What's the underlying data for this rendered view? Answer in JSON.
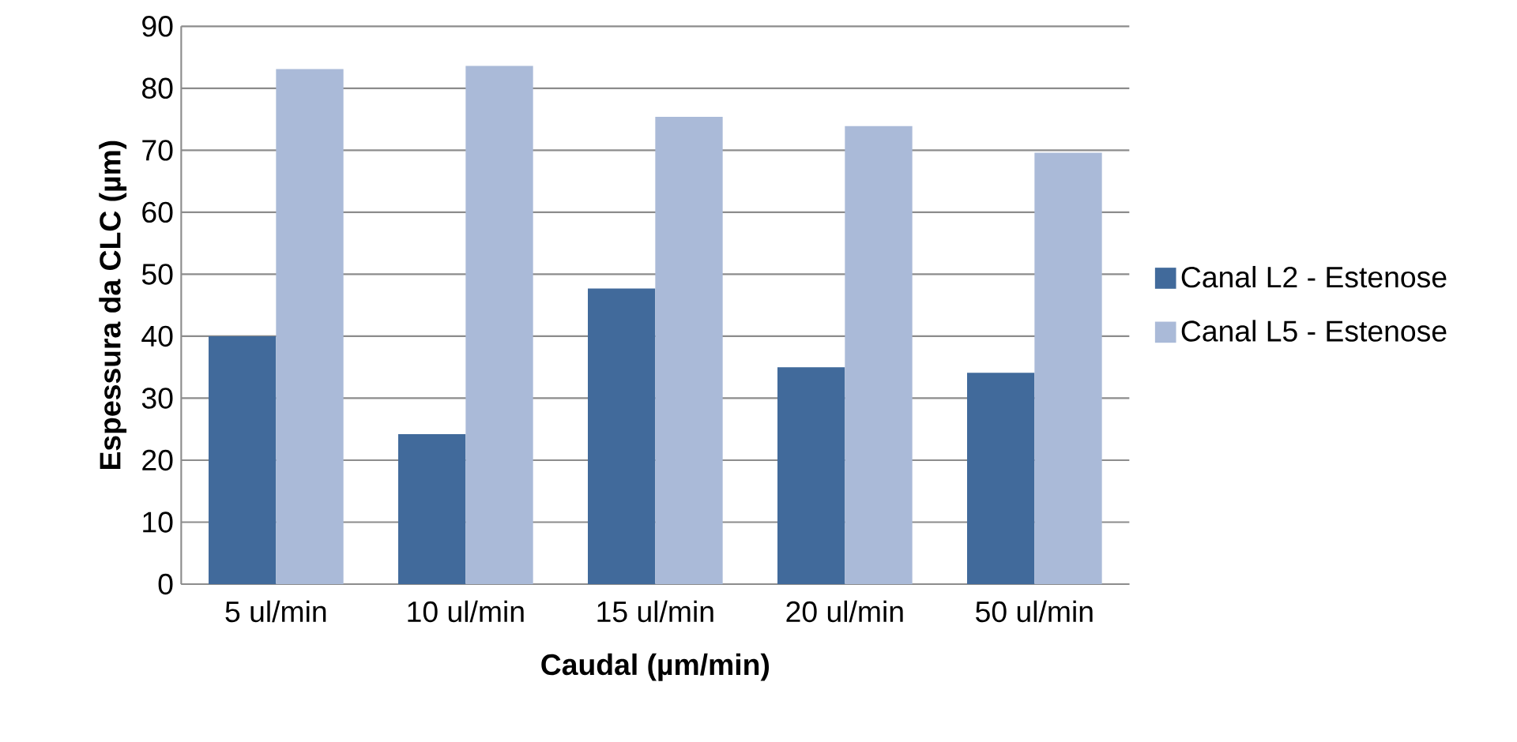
{
  "chart_data": {
    "type": "bar",
    "xlabel": "Caudal (µm/min)",
    "ylabel": "Espessura da CLC (µm)",
    "categories": [
      "5 ul/min",
      "10 ul/min",
      "15 ul/min",
      "20 ul/min",
      "50 ul/min"
    ],
    "series": [
      {
        "name": "Canal L2 - Estenose",
        "color": "#416a9b",
        "values": [
          40.0,
          24.2,
          47.7,
          35.0,
          34.1
        ]
      },
      {
        "name": "Canal L5 - Estenose",
        "color": "#aabad8",
        "values": [
          83.1,
          83.6,
          75.4,
          73.9,
          69.6
        ]
      }
    ],
    "ylim": [
      0,
      90
    ],
    "yticks": [
      0,
      10,
      20,
      30,
      40,
      50,
      60,
      70,
      80,
      90
    ],
    "grid": "y",
    "legend": "right"
  }
}
